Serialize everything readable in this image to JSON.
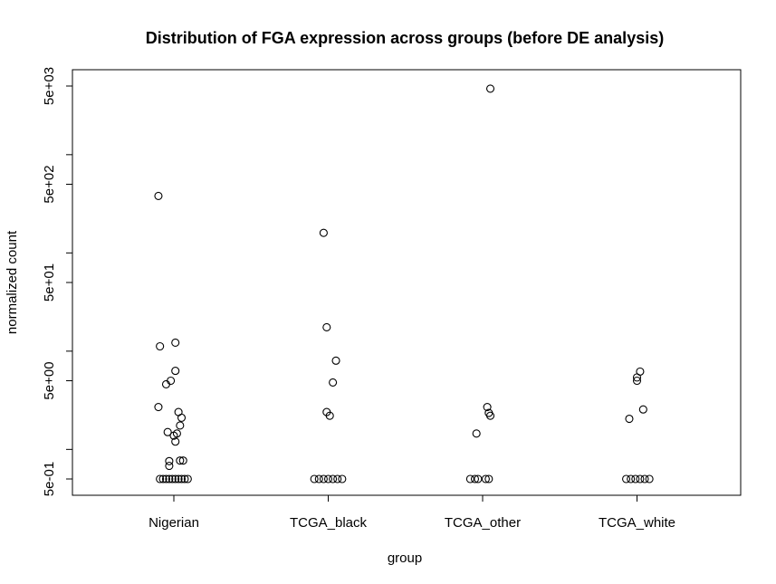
{
  "chart_data": {
    "type": "scatter",
    "title": "Distribution of FGA expression across groups (before DE analysis)",
    "xlabel": "group",
    "ylabel": "normalized count",
    "y_scale": "log10",
    "ylim": [
      0.42,
      6000
    ],
    "y_ticks": [
      0.5,
      5,
      50,
      500,
      5000
    ],
    "y_tick_labels": [
      "5e-01",
      "5e+00",
      "5e+01",
      "5e+02",
      "5e+03"
    ],
    "categories": [
      "Nigerian",
      "TCGA_black",
      "TCGA_other",
      "TCGA_white"
    ],
    "grid": false,
    "legend": "none",
    "points": [
      {
        "group": "Nigerian",
        "jitter": -0.1,
        "value": 380
      },
      {
        "group": "Nigerian",
        "jitter": -0.09,
        "value": 11.2
      },
      {
        "group": "Nigerian",
        "jitter": 0.01,
        "value": 12.2
      },
      {
        "group": "Nigerian",
        "jitter": 0.01,
        "value": 6.3
      },
      {
        "group": "Nigerian",
        "jitter": -0.02,
        "value": 5.0
      },
      {
        "group": "Nigerian",
        "jitter": -0.05,
        "value": 4.6
      },
      {
        "group": "Nigerian",
        "jitter": -0.1,
        "value": 2.7
      },
      {
        "group": "Nigerian",
        "jitter": 0.03,
        "value": 2.4
      },
      {
        "group": "Nigerian",
        "jitter": 0.05,
        "value": 2.1
      },
      {
        "group": "Nigerian",
        "jitter": 0.04,
        "value": 1.75
      },
      {
        "group": "Nigerian",
        "jitter": -0.04,
        "value": 1.5
      },
      {
        "group": "Nigerian",
        "jitter": 0.02,
        "value": 1.45
      },
      {
        "group": "Nigerian",
        "jitter": 0.0,
        "value": 1.38
      },
      {
        "group": "Nigerian",
        "jitter": 0.01,
        "value": 1.2
      },
      {
        "group": "Nigerian",
        "jitter": 0.06,
        "value": 0.77
      },
      {
        "group": "Nigerian",
        "jitter": 0.04,
        "value": 0.77
      },
      {
        "group": "Nigerian",
        "jitter": -0.03,
        "value": 0.76
      },
      {
        "group": "Nigerian",
        "jitter": -0.03,
        "value": 0.68
      },
      {
        "group": "Nigerian",
        "jitter": -0.09,
        "value": 0.5
      },
      {
        "group": "Nigerian",
        "jitter": -0.07,
        "value": 0.5
      },
      {
        "group": "Nigerian",
        "jitter": -0.05,
        "value": 0.5
      },
      {
        "group": "Nigerian",
        "jitter": -0.03,
        "value": 0.5
      },
      {
        "group": "Nigerian",
        "jitter": -0.01,
        "value": 0.5
      },
      {
        "group": "Nigerian",
        "jitter": 0.01,
        "value": 0.5
      },
      {
        "group": "Nigerian",
        "jitter": 0.03,
        "value": 0.5
      },
      {
        "group": "Nigerian",
        "jitter": 0.05,
        "value": 0.5
      },
      {
        "group": "Nigerian",
        "jitter": 0.07,
        "value": 0.5
      },
      {
        "group": "Nigerian",
        "jitter": 0.09,
        "value": 0.5
      },
      {
        "group": "TCGA_black",
        "jitter": -0.03,
        "value": 160
      },
      {
        "group": "TCGA_black",
        "jitter": -0.01,
        "value": 17.5
      },
      {
        "group": "TCGA_black",
        "jitter": 0.05,
        "value": 8.0
      },
      {
        "group": "TCGA_black",
        "jitter": 0.03,
        "value": 4.8
      },
      {
        "group": "TCGA_black",
        "jitter": -0.01,
        "value": 2.4
      },
      {
        "group": "TCGA_black",
        "jitter": 0.01,
        "value": 2.2
      },
      {
        "group": "TCGA_black",
        "jitter": -0.09,
        "value": 0.5
      },
      {
        "group": "TCGA_black",
        "jitter": -0.06,
        "value": 0.5
      },
      {
        "group": "TCGA_black",
        "jitter": -0.03,
        "value": 0.5
      },
      {
        "group": "TCGA_black",
        "jitter": 0.0,
        "value": 0.5
      },
      {
        "group": "TCGA_black",
        "jitter": 0.03,
        "value": 0.5
      },
      {
        "group": "TCGA_black",
        "jitter": 0.06,
        "value": 0.5
      },
      {
        "group": "TCGA_black",
        "jitter": 0.09,
        "value": 0.5
      },
      {
        "group": "TCGA_other",
        "jitter": 0.05,
        "value": 4700
      },
      {
        "group": "TCGA_other",
        "jitter": 0.03,
        "value": 2.7
      },
      {
        "group": "TCGA_other",
        "jitter": 0.04,
        "value": 2.35
      },
      {
        "group": "TCGA_other",
        "jitter": 0.05,
        "value": 2.2
      },
      {
        "group": "TCGA_other",
        "jitter": -0.04,
        "value": 1.45
      },
      {
        "group": "TCGA_other",
        "jitter": -0.08,
        "value": 0.5
      },
      {
        "group": "TCGA_other",
        "jitter": -0.05,
        "value": 0.5
      },
      {
        "group": "TCGA_other",
        "jitter": -0.03,
        "value": 0.5
      },
      {
        "group": "TCGA_other",
        "jitter": 0.02,
        "value": 0.5
      },
      {
        "group": "TCGA_other",
        "jitter": 0.04,
        "value": 0.5
      },
      {
        "group": "TCGA_white",
        "jitter": 0.02,
        "value": 6.2
      },
      {
        "group": "TCGA_white",
        "jitter": 0.0,
        "value": 5.4
      },
      {
        "group": "TCGA_white",
        "jitter": 0.0,
        "value": 5.0
      },
      {
        "group": "TCGA_white",
        "jitter": 0.04,
        "value": 2.55
      },
      {
        "group": "TCGA_white",
        "jitter": -0.05,
        "value": 2.05
      },
      {
        "group": "TCGA_white",
        "jitter": -0.07,
        "value": 0.5
      },
      {
        "group": "TCGA_white",
        "jitter": -0.04,
        "value": 0.5
      },
      {
        "group": "TCGA_white",
        "jitter": -0.01,
        "value": 0.5
      },
      {
        "group": "TCGA_white",
        "jitter": 0.02,
        "value": 0.5
      },
      {
        "group": "TCGA_white",
        "jitter": 0.05,
        "value": 0.5
      },
      {
        "group": "TCGA_white",
        "jitter": 0.08,
        "value": 0.5
      }
    ]
  }
}
